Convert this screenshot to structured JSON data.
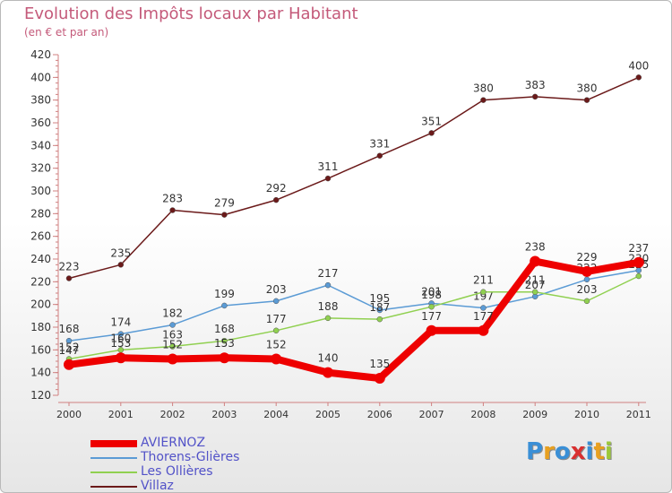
{
  "chart_title": "Evolution des Impôts locaux par Habitant",
  "chart_subtitle": "(en € et par an)",
  "brand": {
    "letters": [
      "P",
      "r",
      "o",
      "x",
      "i",
      "t",
      "i"
    ],
    "colors": [
      "#3a8fd6",
      "#e8a020",
      "#3a8fd6",
      "#d93030",
      "#3a8fd6",
      "#e8a020",
      "#9cc83a"
    ]
  },
  "chart_data": {
    "type": "line",
    "categories": [
      "2000",
      "2001",
      "2002",
      "2003",
      "2004",
      "2005",
      "2006",
      "2007",
      "2008",
      "2009",
      "2010",
      "2011"
    ],
    "ylim": [
      120,
      420
    ],
    "yticks": [
      120,
      140,
      160,
      180,
      200,
      220,
      240,
      260,
      280,
      300,
      320,
      340,
      360,
      380,
      400,
      420
    ],
    "grid": false,
    "legend_position": "bottom-left",
    "series": [
      {
        "name": "Villaz",
        "color": "#6b1a1a",
        "values": [
          223,
          235,
          283,
          279,
          292,
          311,
          331,
          351,
          380,
          383,
          380,
          400
        ],
        "labels": [
          "223",
          "235",
          "283",
          "279",
          "292",
          "311",
          "331",
          "351",
          "380",
          "383",
          "380",
          "400"
        ],
        "label_position": "above",
        "emphasis": false
      },
      {
        "name": "Thorens-Glières",
        "color": "#5b9bd5",
        "values": [
          168,
          174,
          182,
          199,
          203,
          217,
          195,
          201,
          197,
          207,
          222,
          230
        ],
        "labels": [
          "168",
          "174",
          "182",
          "199",
          "203",
          "217",
          "195",
          "201",
          "197",
          "207",
          "222",
          "230"
        ],
        "label_position": "above",
        "emphasis": false
      },
      {
        "name": "Les Ollières",
        "color": "#90d050",
        "values": [
          152,
          160,
          163,
          168,
          177,
          188,
          187,
          198,
          211,
          211,
          203,
          225
        ],
        "labels": [
          "152",
          "160",
          "163",
          "168",
          "177",
          "188",
          "187",
          "198",
          "211",
          "211",
          "203",
          "225"
        ],
        "label_position": "above",
        "emphasis": false
      },
      {
        "name": "AVIERNOZ",
        "color": "#ee0000",
        "values": [
          147,
          153,
          152,
          153,
          152,
          140,
          135,
          177,
          177,
          238,
          229,
          237
        ],
        "labels": [
          "147",
          "153",
          "152",
          "153",
          "152",
          "140",
          "135",
          "177",
          "177",
          "238",
          "229",
          "237"
        ],
        "label_position": "above",
        "emphasis": true
      }
    ],
    "legend_order": [
      "AVIERNOZ",
      "Thorens-Glières",
      "Les Ollières",
      "Villaz"
    ]
  }
}
